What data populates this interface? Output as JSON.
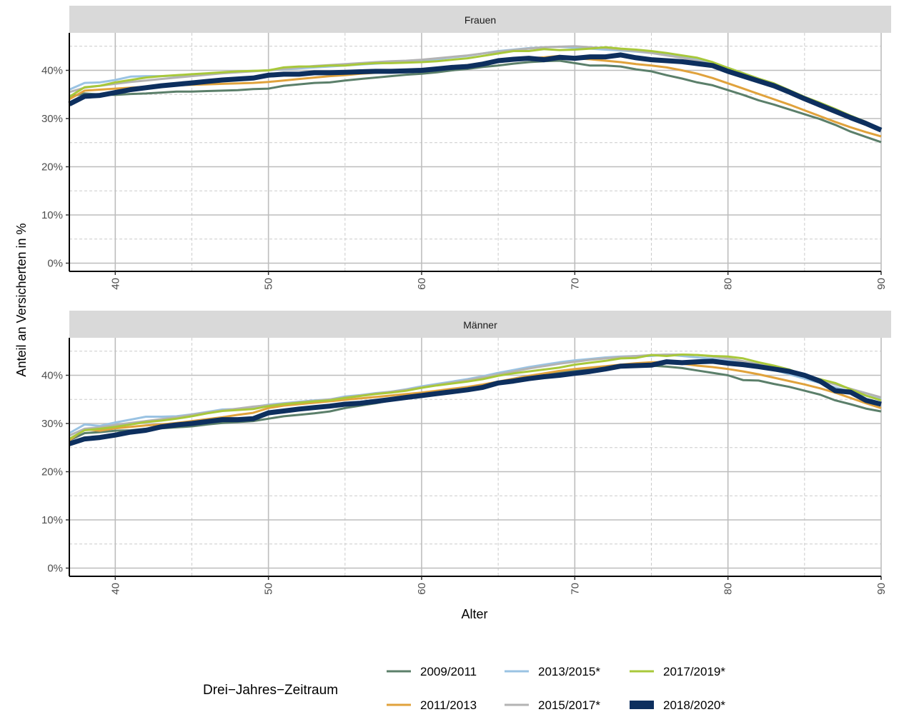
{
  "chart_data": {
    "type": "line",
    "xlabel": "Alter",
    "ylabel": "Anteil an Versicherten in %",
    "xlim": [
      37,
      90
    ],
    "ylim": [
      0,
      47
    ],
    "x_ticks": [
      40,
      50,
      60,
      70,
      80,
      90
    ],
    "y_ticks": [
      0,
      10,
      20,
      30,
      40
    ],
    "y_tick_labels": [
      "0%",
      "10%",
      "20%",
      "30%",
      "40%"
    ],
    "grid": "major solid, minor dashed",
    "legend": {
      "title": "Drei−Jahres−Zeitraum",
      "position": "bottom"
    },
    "x": [
      37,
      38,
      39,
      40,
      41,
      42,
      43,
      44,
      45,
      46,
      47,
      48,
      49,
      50,
      51,
      52,
      53,
      54,
      55,
      56,
      57,
      58,
      59,
      60,
      61,
      62,
      63,
      64,
      65,
      66,
      67,
      68,
      69,
      70,
      71,
      72,
      73,
      74,
      75,
      76,
      77,
      78,
      79,
      80,
      81,
      82,
      83,
      84,
      85,
      86,
      87,
      88,
      89,
      90
    ],
    "series_meta": [
      {
        "name": "2009/2011",
        "color": "#5b7f6a"
      },
      {
        "name": "2011/2013",
        "color": "#e0a23c"
      },
      {
        "name": "2013/2015*",
        "color": "#9ac3e3"
      },
      {
        "name": "2015/2017*",
        "color": "#b3b3b3"
      },
      {
        "name": "2017/2019*",
        "color": "#a8c83a"
      },
      {
        "name": "2018/2020*",
        "color": "#0d2f5e"
      }
    ],
    "panels": [
      {
        "title": "Frauen",
        "series": [
          {
            "name": "2009/2011",
            "values": [
              34.5,
              35.2,
              35.0,
              34.9,
              35.1,
              35.2,
              35.4,
              35.6,
              35.6,
              35.7,
              35.8,
              35.9,
              36.1,
              36.2,
              36.8,
              37.1,
              37.4,
              37.5,
              37.9,
              38.2,
              38.5,
              38.8,
              39.1,
              39.3,
              39.6,
              40.0,
              40.3,
              40.7,
              41.0,
              41.4,
              41.7,
              41.9,
              42.0,
              41.5,
              41.0,
              41.0,
              40.8,
              40.2,
              39.8,
              39.0,
              38.3,
              37.5,
              36.9,
              35.9,
              34.9,
              33.8,
              32.9,
              31.9,
              30.9,
              29.9,
              28.7,
              27.3,
              26.2,
              25.1
            ]
          },
          {
            "name": "2011/2013",
            "values": [
              34.0,
              35.8,
              36.0,
              36.2,
              36.4,
              36.6,
              36.8,
              36.9,
              37.0,
              37.1,
              37.2,
              37.3,
              37.4,
              37.6,
              37.9,
              38.2,
              38.5,
              38.8,
              39.0,
              39.3,
              39.5,
              39.8,
              40.0,
              40.2,
              40.5,
              40.8,
              41.1,
              41.5,
              41.9,
              42.2,
              42.5,
              42.7,
              43.0,
              42.5,
              42.3,
              42.0,
              41.7,
              41.3,
              41.0,
              40.6,
              40.0,
              39.3,
              38.4,
              37.3,
              36.2,
              35.1,
              34.0,
              32.9,
              31.7,
              30.5,
              29.3,
              28.2,
              27.2,
              26.3
            ]
          },
          {
            "name": "2013/2015*",
            "values": [
              36.0,
              37.4,
              37.5,
              38.0,
              38.7,
              38.8,
              38.8,
              38.9,
              39.0,
              39.2,
              39.5,
              39.7,
              39.9,
              40.0,
              40.2,
              40.4,
              40.6,
              40.8,
              41.0,
              41.2,
              41.4,
              41.6,
              41.8,
              42.0,
              42.3,
              42.7,
              43.0,
              43.5,
              44.0,
              44.3,
              44.6,
              44.8,
              44.9,
              44.7,
              44.5,
              44.3,
              44.1,
              43.9,
              43.6,
              43.3,
              42.9,
              42.4,
              41.5,
              40.5,
              39.4,
              38.2,
              36.9,
              35.6,
              34.3,
              33.0,
              31.7,
              30.2,
              28.8,
              27.3
            ]
          },
          {
            "name": "2015/2017*",
            "values": [
              35.5,
              36.4,
              36.8,
              37.2,
              37.6,
              37.9,
              38.2,
              38.5,
              38.8,
              39.1,
              39.4,
              39.6,
              39.8,
              40.0,
              40.3,
              40.6,
              40.9,
              41.1,
              41.3,
              41.5,
              41.7,
              41.9,
              42.0,
              42.2,
              42.5,
              42.8,
              43.1,
              43.5,
              43.9,
              44.2,
              44.5,
              44.8,
              44.9,
              45.0,
              44.8,
              44.6,
              44.3,
              44.0,
              43.6,
              43.1,
              42.6,
              42.0,
              41.2,
              40.2,
              39.2,
              38.0,
              36.8,
              35.5,
              34.1,
              32.7,
              31.4,
              30.0,
              28.7,
              27.4
            ]
          },
          {
            "name": "2017/2019*",
            "values": [
              34.5,
              36.5,
              36.8,
              37.5,
              38.0,
              38.5,
              38.8,
              39.0,
              39.2,
              39.4,
              39.6,
              39.8,
              39.9,
              40.0,
              40.6,
              40.8,
              40.8,
              41.0,
              41.0,
              41.3,
              41.5,
              41.5,
              41.6,
              41.7,
              41.9,
              42.2,
              42.5,
              43.0,
              43.5,
              44.0,
              44.0,
              44.4,
              44.2,
              44.3,
              44.5,
              44.8,
              44.5,
              44.3,
              44.0,
              43.6,
              43.1,
              42.6,
              41.7,
              40.5,
              39.4,
              38.3,
              37.3,
              35.9,
              34.5,
              33.3,
              32.0,
              30.6,
              29.3,
              27.8
            ]
          },
          {
            "name": "2018/2020*",
            "values": [
              33.0,
              34.6,
              34.8,
              35.4,
              36.0,
              36.4,
              36.8,
              37.1,
              37.4,
              37.7,
              38.0,
              38.2,
              38.4,
              39.0,
              39.2,
              39.2,
              39.5,
              39.5,
              39.6,
              39.7,
              39.8,
              39.8,
              39.9,
              40.0,
              40.3,
              40.6,
              40.8,
              41.3,
              42.0,
              42.3,
              42.5,
              42.2,
              42.7,
              42.5,
              42.8,
              42.8,
              43.2,
              42.6,
              42.2,
              42.0,
              41.8,
              41.4,
              41.0,
              39.8,
              38.8,
              37.8,
              36.8,
              35.5,
              34.1,
              32.8,
              31.5,
              30.2,
              29.0,
              27.6
            ]
          }
        ]
      },
      {
        "title": "Männer",
        "series": [
          {
            "name": "2009/2011",
            "values": [
              26.5,
              28.0,
              28.2,
              28.5,
              28.6,
              28.9,
              29.0,
              29.2,
              29.4,
              29.8,
              30.1,
              30.3,
              30.5,
              31.0,
              31.5,
              31.8,
              32.1,
              32.5,
              33.2,
              33.7,
              34.2,
              34.8,
              35.3,
              35.8,
              36.4,
              36.9,
              37.4,
              38.0,
              38.6,
              39.2,
              39.7,
              40.2,
              40.6,
              41.0,
              41.3,
              41.6,
              41.8,
              42.0,
              42.0,
              41.8,
              41.5,
              41.0,
              40.5,
              40.0,
              39.0,
              38.9,
              38.2,
              37.6,
              36.8,
              36.0,
              34.8,
              34.0,
              33.1,
              32.5
            ]
          },
          {
            "name": "2011/2013",
            "values": [
              26.5,
              28.8,
              28.5,
              29.0,
              29.3,
              29.6,
              29.8,
              30.1,
              30.5,
              30.9,
              31.3,
              31.8,
              32.2,
              33.2,
              33.7,
              34.0,
              34.3,
              34.6,
              34.9,
              35.2,
              35.5,
              35.8,
              36.1,
              36.4,
              36.8,
              37.2,
              37.6,
              38.1,
              38.7,
              39.3,
              39.9,
              40.4,
              40.9,
              41.3,
              41.6,
              41.9,
              42.2,
              42.5,
              42.7,
              42.7,
              42.4,
              42.0,
              41.7,
              41.3,
              40.8,
              40.2,
              39.5,
              38.8,
              38.1,
              37.3,
              36.4,
              35.3,
              34.2,
              33.2
            ]
          },
          {
            "name": "2013/2015*",
            "values": [
              28.0,
              29.8,
              29.5,
              30.2,
              30.8,
              31.4,
              31.4,
              31.5,
              31.9,
              32.4,
              32.9,
              33.0,
              33.4,
              33.9,
              34.2,
              34.5,
              34.8,
              35.0,
              35.6,
              35.9,
              36.3,
              36.6,
              37.1,
              37.7,
              38.2,
              38.7,
              39.2,
              39.8,
              40.5,
              41.1,
              41.7,
              42.2,
              42.7,
              43.1,
              43.4,
              43.7,
              43.9,
              44.0,
              44.0,
              44.3,
              44.0,
              43.7,
              43.4,
              43.0,
              42.5,
              41.9,
              41.1,
              40.2,
              39.3,
              38.4,
              37.5,
              36.6,
              35.8,
              35.0
            ]
          },
          {
            "name": "2015/2017*",
            "values": [
              27.5,
              28.9,
              29.2,
              29.7,
              30.1,
              30.5,
              30.9,
              31.3,
              31.8,
              32.3,
              32.7,
              33.1,
              33.5,
              33.8,
              34.1,
              34.4,
              34.7,
              35.0,
              35.4,
              35.8,
              36.2,
              36.6,
              37.0,
              37.5,
              38.0,
              38.5,
              39.0,
              39.6,
              40.2,
              40.8,
              41.4,
              41.9,
              42.4,
              42.8,
              43.2,
              43.5,
              43.8,
              44.0,
              44.2,
              44.3,
              44.3,
              44.2,
              43.9,
              43.5,
              42.9,
              42.3,
              41.6,
              40.8,
              39.9,
              39.0,
              38.1,
              37.2,
              36.3,
              35.4
            ]
          },
          {
            "name": "2017/2019*",
            "values": [
              26.8,
              28.6,
              28.9,
              29.3,
              29.8,
              30.3,
              30.6,
              31.0,
              31.5,
              32.1,
              32.6,
              32.8,
              33.0,
              33.6,
              34.0,
              34.3,
              34.6,
              34.8,
              35.3,
              35.7,
              36.1,
              36.4,
              36.8,
              37.4,
              37.9,
              38.3,
              38.7,
              39.2,
              39.9,
              40.4,
              40.8,
              41.2,
              41.6,
              42.2,
              42.6,
              43.0,
              43.5,
              43.6,
              44.2,
              44.0,
              44.3,
              44.2,
              44.0,
              43.9,
              43.5,
              42.7,
              42.0,
              41.2,
              40.0,
              39.2,
              38.4,
              37.1,
              35.8,
              34.8
            ]
          },
          {
            "name": "2018/2020*",
            "values": [
              25.8,
              26.8,
              27.1,
              27.6,
              28.2,
              28.6,
              29.3,
              29.7,
              30.0,
              30.4,
              30.8,
              30.8,
              31.0,
              32.2,
              32.6,
              33.0,
              33.3,
              33.6,
              34.0,
              34.2,
              34.6,
              35.0,
              35.4,
              35.8,
              36.2,
              36.6,
              37.0,
              37.5,
              38.4,
              38.8,
              39.3,
              39.7,
              40.0,
              40.4,
              40.8,
              41.3,
              41.9,
              42.0,
              42.1,
              42.8,
              42.6,
              42.8,
              42.9,
              42.5,
              42.2,
              41.8,
              41.3,
              40.8,
              40.0,
              38.8,
              36.8,
              36.5,
              34.8,
              34.0
            ]
          }
        ]
      }
    ]
  }
}
